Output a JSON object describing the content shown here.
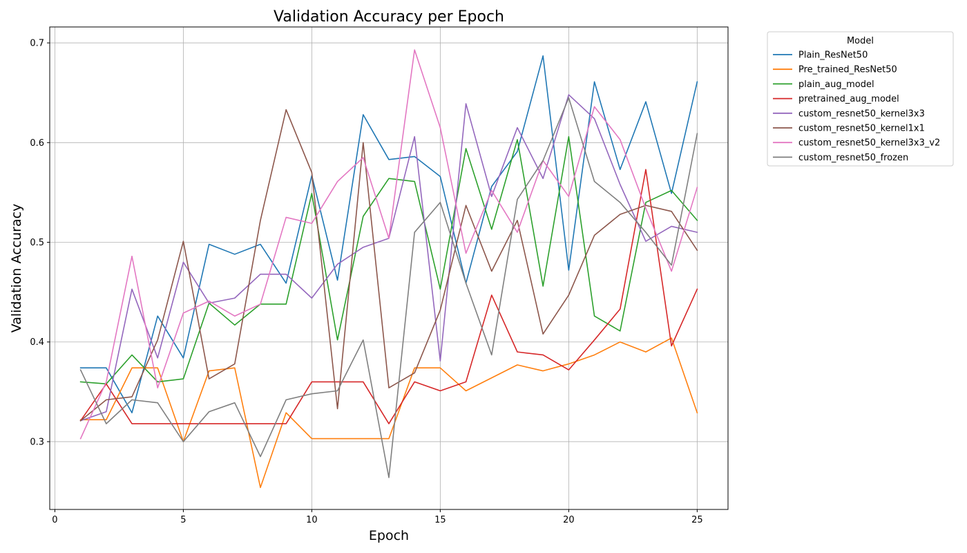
{
  "chart_data": {
    "type": "line",
    "title": "Validation Accuracy per Epoch",
    "xlabel": "Epoch",
    "ylabel": "Validation Accuracy",
    "xlim": [
      -0.2,
      26.2
    ],
    "ylim": [
      0.232,
      0.716
    ],
    "xticks": [
      0,
      5,
      10,
      15,
      20,
      25
    ],
    "yticks": [
      0.3,
      0.4,
      0.5,
      0.6,
      0.7
    ],
    "grid": true,
    "legend": {
      "title": "Model",
      "placement": "outside-top-right"
    },
    "x": [
      1,
      2,
      3,
      4,
      5,
      6,
      7,
      8,
      9,
      10,
      11,
      12,
      13,
      14,
      15,
      16,
      17,
      18,
      19,
      20,
      21,
      22,
      23,
      24,
      25
    ],
    "series": [
      {
        "name": "Plain_ResNet50",
        "color": "#1f77b4",
        "values": [
          0.374,
          0.374,
          0.329,
          0.426,
          0.384,
          0.498,
          0.488,
          0.498,
          0.459,
          0.567,
          0.462,
          0.628,
          0.583,
          0.586,
          0.566,
          0.459,
          0.556,
          0.591,
          0.687,
          0.472,
          0.661,
          0.573,
          0.641,
          0.549,
          0.661
        ]
      },
      {
        "name": "Pre_trained_ResNet50",
        "color": "#ff7f0e",
        "values": [
          0.322,
          0.322,
          0.374,
          0.374,
          0.3,
          0.371,
          0.374,
          0.254,
          0.329,
          0.303,
          0.303,
          0.303,
          0.303,
          0.374,
          0.374,
          0.351,
          0.364,
          0.377,
          0.371,
          0.378,
          0.387,
          0.4,
          0.39,
          0.404,
          0.329
        ]
      },
      {
        "name": "plain_aug_model",
        "color": "#2ca02c",
        "values": [
          0.36,
          0.358,
          0.387,
          0.36,
          0.363,
          0.439,
          0.417,
          0.438,
          0.438,
          0.549,
          0.402,
          0.526,
          0.564,
          0.561,
          0.453,
          0.594,
          0.513,
          0.603,
          0.456,
          0.606,
          0.426,
          0.411,
          0.54,
          0.552,
          0.522
        ]
      },
      {
        "name": "pretrained_aug_model",
        "color": "#d62728",
        "values": [
          0.321,
          0.358,
          0.318,
          0.318,
          0.318,
          0.318,
          0.318,
          0.318,
          0.318,
          0.36,
          0.36,
          0.36,
          0.318,
          0.36,
          0.351,
          0.36,
          0.447,
          0.39,
          0.387,
          0.372,
          0.402,
          0.433,
          0.573,
          0.396,
          0.453
        ]
      },
      {
        "name": "custom_resnet50_kernel3x3",
        "color": "#9467bd",
        "values": [
          0.321,
          0.33,
          0.453,
          0.384,
          0.48,
          0.439,
          0.444,
          0.468,
          0.468,
          0.444,
          0.478,
          0.495,
          0.504,
          0.606,
          0.381,
          0.639,
          0.546,
          0.615,
          0.564,
          0.648,
          0.624,
          0.558,
          0.501,
          0.516,
          0.51
        ]
      },
      {
        "name": "custom_resnet50_kernel1x1",
        "color": "#8c564b",
        "values": [
          0.321,
          0.342,
          0.345,
          0.402,
          0.501,
          0.363,
          0.378,
          0.522,
          0.633,
          0.57,
          0.333,
          0.6,
          0.354,
          0.369,
          0.432,
          0.537,
          0.471,
          0.522,
          0.408,
          0.447,
          0.507,
          0.528,
          0.537,
          0.531,
          0.492
        ]
      },
      {
        "name": "custom_resnet50_kernel3x3_v2",
        "color": "#e377c2",
        "values": [
          0.303,
          0.36,
          0.486,
          0.354,
          0.429,
          0.441,
          0.426,
          0.438,
          0.525,
          0.519,
          0.561,
          0.585,
          0.504,
          0.693,
          0.615,
          0.489,
          0.552,
          0.51,
          0.582,
          0.546,
          0.636,
          0.603,
          0.534,
          0.471,
          0.555
        ]
      },
      {
        "name": "custom_resnet50_frozen",
        "color": "#7f7f7f",
        "values": [
          0.372,
          0.318,
          0.342,
          0.339,
          0.3,
          0.33,
          0.339,
          0.285,
          0.342,
          0.348,
          0.351,
          0.402,
          0.264,
          0.51,
          0.54,
          0.459,
          0.387,
          0.543,
          0.582,
          0.645,
          0.561,
          0.54,
          0.51,
          0.477,
          0.609
        ]
      }
    ]
  }
}
